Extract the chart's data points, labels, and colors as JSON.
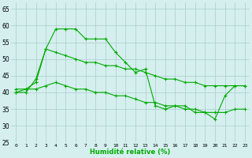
{
  "xlabel": "Humidité relative (%)",
  "series1": [
    40,
    40,
    44,
    53,
    59,
    59,
    59,
    56,
    56,
    56,
    52,
    49,
    46,
    47,
    36,
    35,
    36,
    36,
    34,
    34,
    32,
    39,
    42,
    42
  ],
  "series2": [
    40,
    41,
    43,
    53,
    52,
    51,
    50,
    49,
    49,
    48,
    48,
    47,
    47,
    46,
    45,
    44,
    44,
    43,
    43,
    42,
    42,
    42,
    42,
    42
  ],
  "series3": [
    41,
    41,
    41,
    42,
    43,
    42,
    41,
    41,
    40,
    40,
    39,
    39,
    38,
    37,
    37,
    36,
    36,
    35,
    35,
    34,
    34,
    34,
    35,
    35
  ],
  "x": [
    0,
    1,
    2,
    3,
    4,
    5,
    6,
    7,
    8,
    9,
    10,
    11,
    12,
    13,
    14,
    15,
    16,
    17,
    18,
    19,
    20,
    21,
    22,
    23
  ],
  "ylim": [
    25,
    67
  ],
  "yticks": [
    25,
    30,
    35,
    40,
    45,
    50,
    55,
    60,
    65
  ],
  "xticks": [
    0,
    1,
    2,
    3,
    4,
    5,
    6,
    7,
    8,
    9,
    10,
    11,
    12,
    13,
    14,
    15,
    16,
    17,
    18,
    19,
    20,
    21,
    22,
    23
  ],
  "line_color": "#00aa00",
  "bg_color": "#d5efef",
  "grid_color": "#aacccc",
  "marker_size": 2.5,
  "line_width": 0.8
}
